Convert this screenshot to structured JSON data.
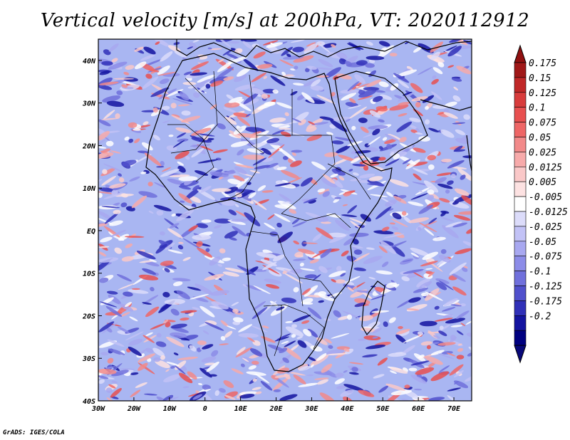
{
  "title": "Vertical velocity [m/s] at 200hPa, VT: 2020112912",
  "footer": "GrADS: IGES/COLA",
  "map": {
    "lon_range": [
      -30,
      75
    ],
    "lat_range": [
      -40,
      45
    ],
    "lon_ticks": [
      "30W",
      "20W",
      "10W",
      "0",
      "10E",
      "20E",
      "30E",
      "40E",
      "50E",
      "60E",
      "70E"
    ],
    "lat_ticks": [
      "40N",
      "30N",
      "20N",
      "10N",
      "EQ",
      "10S",
      "20S",
      "30S",
      "40S"
    ]
  },
  "colorbar": {
    "levels": [
      "0.175",
      "0.15",
      "0.125",
      "0.1",
      "0.075",
      "0.05",
      "0.025",
      "0.0125",
      "0.005",
      "-0.005",
      "-0.0125",
      "-0.025",
      "-0.05",
      "-0.075",
      "-0.1",
      "-0.125",
      "-0.175",
      "-0.2"
    ],
    "colors": [
      "#a01818",
      "#c02828",
      "#d83c3c",
      "#e85050",
      "#ee6666",
      "#f28a8a",
      "#f7aaaa",
      "#fac8c8",
      "#fde2e2",
      "#ffffff",
      "#dcdcfa",
      "#c2c2f6",
      "#a8a8f0",
      "#8c8ce8",
      "#7070dc",
      "#5050cc",
      "#3030b8",
      "#1414a0",
      "#000080"
    ],
    "top_color": "#901010",
    "bottom_color": "#08087a"
  }
}
